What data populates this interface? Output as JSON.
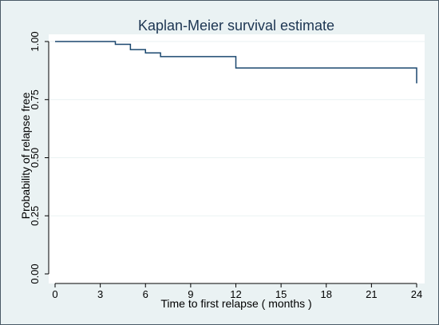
{
  "chart_data": {
    "type": "line",
    "subtype": "step",
    "title": "Kaplan-Meier survival estimate",
    "xlabel": "Time to first relapse ( months )",
    "ylabel": "Probability of relapse free",
    "xlim": [
      0,
      24
    ],
    "ylim": [
      0,
      1
    ],
    "x_ticks": [
      0,
      3,
      6,
      9,
      12,
      15,
      18,
      21,
      24
    ],
    "x_tick_labels": [
      "0",
      "3",
      "6",
      "9",
      "12",
      "15",
      "18",
      "21",
      "24"
    ],
    "y_ticks": [
      0,
      0.25,
      0.5,
      0.75,
      1
    ],
    "y_tick_labels": [
      "0.00",
      "0.25",
      "0.50",
      "0.75",
      "1.00"
    ],
    "grid": true,
    "series": [
      {
        "x": [
          0,
          4,
          5,
          6,
          7,
          12,
          24
        ],
        "y": [
          1.0,
          0.988,
          0.965,
          0.951,
          0.935,
          0.886,
          0.82
        ]
      }
    ]
  },
  "colors": {
    "figure_background": "#eaf2f3",
    "plot_background": "#ffffff",
    "grid": "#eaf2f3",
    "series_line": "#1a476f",
    "title": "#1c3552",
    "axis": "#000000"
  }
}
